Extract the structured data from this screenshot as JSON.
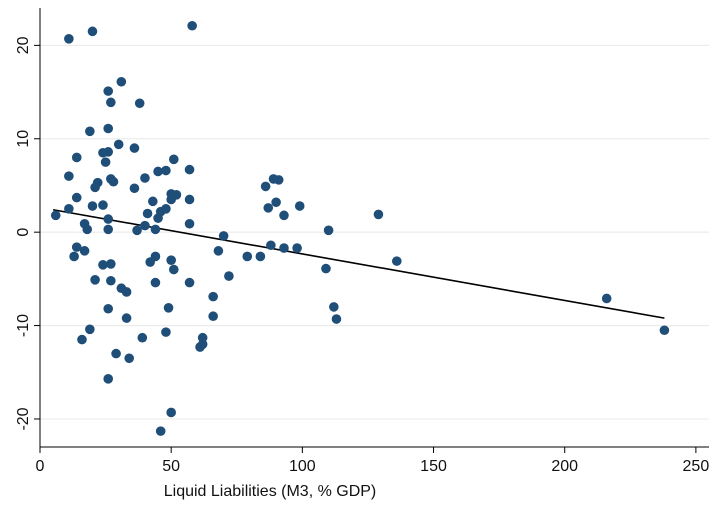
{
  "chart_data": {
    "type": "scatter",
    "xlabel": "Liquid Liabilities (M3, % GDP)",
    "ylabel": "",
    "xlim": [
      0,
      255
    ],
    "ylim": [
      -23,
      24
    ],
    "xticks": [
      0,
      50,
      100,
      150,
      200,
      250
    ],
    "yticks": [
      -20,
      -10,
      0,
      10,
      20
    ],
    "grid": "horizontal",
    "colors": {
      "points": "#1f4e79",
      "fit_line": "#000000",
      "grid": "#e8e8e8",
      "axis": "#000000"
    },
    "points": [
      [
        11,
        20.7
      ],
      [
        20,
        21.5
      ],
      [
        58,
        22.1
      ],
      [
        26,
        15.1
      ],
      [
        31,
        16.1
      ],
      [
        27,
        13.9
      ],
      [
        38,
        13.8
      ],
      [
        19,
        10.8
      ],
      [
        26,
        11.1
      ],
      [
        30,
        9.4
      ],
      [
        36,
        9.0
      ],
      [
        24,
        8.5
      ],
      [
        26,
        8.6
      ],
      [
        14,
        8.0
      ],
      [
        25,
        7.5
      ],
      [
        51,
        7.8
      ],
      [
        45,
        6.5
      ],
      [
        48,
        6.6
      ],
      [
        57,
        6.7
      ],
      [
        11,
        6.0
      ],
      [
        27,
        5.7
      ],
      [
        28,
        5.4
      ],
      [
        22,
        5.3
      ],
      [
        40,
        5.8
      ],
      [
        21,
        4.8
      ],
      [
        36,
        4.7
      ],
      [
        50,
        4.1
      ],
      [
        52,
        4.0
      ],
      [
        43,
        3.3
      ],
      [
        14,
        3.7
      ],
      [
        57,
        3.5
      ],
      [
        20,
        2.8
      ],
      [
        24,
        2.9
      ],
      [
        48,
        2.5
      ],
      [
        46,
        2.2
      ],
      [
        41,
        2.0
      ],
      [
        11,
        2.5
      ],
      [
        6,
        1.8
      ],
      [
        26,
        1.4
      ],
      [
        45,
        1.5
      ],
      [
        40,
        0.7
      ],
      [
        44,
        0.3
      ],
      [
        26,
        0.3
      ],
      [
        17,
        0.9
      ],
      [
        18,
        0.3
      ],
      [
        37,
        0.2
      ],
      [
        57,
        0.9
      ],
      [
        50,
        3.5
      ],
      [
        86,
        4.9
      ],
      [
        89,
        5.7
      ],
      [
        91,
        5.6
      ],
      [
        87,
        2.6
      ],
      [
        90,
        3.2
      ],
      [
        93,
        1.8
      ],
      [
        99,
        2.8
      ],
      [
        129,
        1.9
      ],
      [
        110,
        0.2
      ],
      [
        70,
        -0.4
      ],
      [
        14,
        -1.6
      ],
      [
        17,
        -2.0
      ],
      [
        13,
        -2.6
      ],
      [
        88,
        -1.4
      ],
      [
        93,
        -1.7
      ],
      [
        98,
        -1.7
      ],
      [
        68,
        -2.0
      ],
      [
        79,
        -2.6
      ],
      [
        84,
        -2.6
      ],
      [
        24,
        -3.5
      ],
      [
        27,
        -3.4
      ],
      [
        42,
        -3.2
      ],
      [
        44,
        -2.6
      ],
      [
        50,
        -3.0
      ],
      [
        51,
        -4.0
      ],
      [
        72,
        -4.7
      ],
      [
        109,
        -3.9
      ],
      [
        136,
        -3.1
      ],
      [
        21,
        -5.1
      ],
      [
        27,
        -5.2
      ],
      [
        31,
        -6.0
      ],
      [
        33,
        -6.4
      ],
      [
        44,
        -5.4
      ],
      [
        57,
        -5.4
      ],
      [
        66,
        -6.9
      ],
      [
        26,
        -8.2
      ],
      [
        33,
        -9.2
      ],
      [
        49,
        -8.1
      ],
      [
        66,
        -9.0
      ],
      [
        112,
        -8.0
      ],
      [
        113,
        -9.3
      ],
      [
        216,
        -7.1
      ],
      [
        19,
        -10.4
      ],
      [
        48,
        -10.7
      ],
      [
        62,
        -11.3
      ],
      [
        16,
        -11.5
      ],
      [
        39,
        -11.3
      ],
      [
        61,
        -12.3
      ],
      [
        62,
        -12.0
      ],
      [
        29,
        -13.0
      ],
      [
        34,
        -13.5
      ],
      [
        238,
        -10.5
      ],
      [
        26,
        -15.7
      ],
      [
        50,
        -19.3
      ],
      [
        46,
        -21.3
      ]
    ],
    "fit_line": {
      "x": [
        5,
        238
      ],
      "y": [
        2.4,
        -9.2
      ]
    }
  }
}
